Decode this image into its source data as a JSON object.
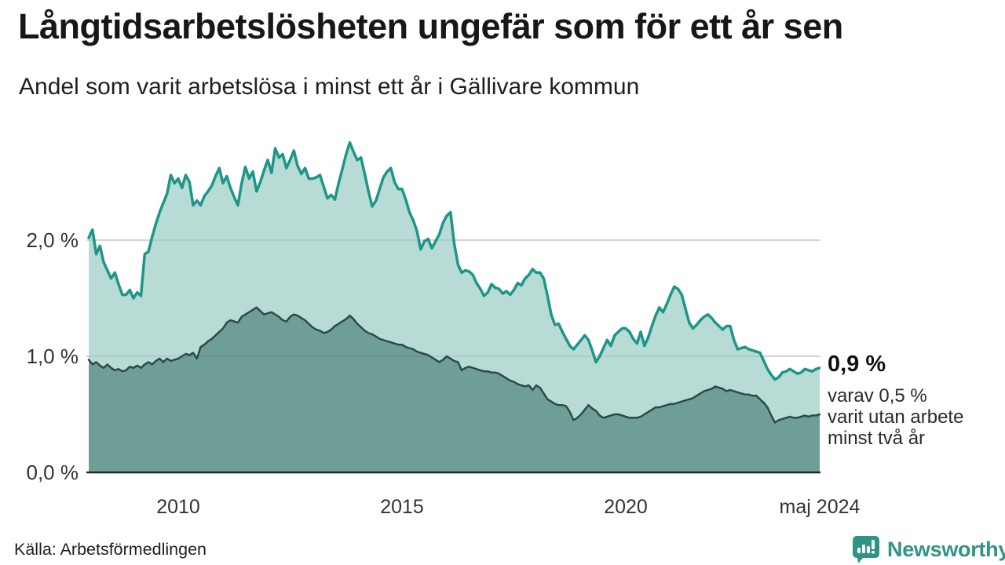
{
  "header": {
    "title": "Långtidsarbetslösheten ungefär som för ett år sen",
    "subtitle": "Andel som varit arbetslösa i minst ett år i Gällivare kommun"
  },
  "annotation": {
    "value": "0,9 %",
    "lines": [
      "varav 0,5 %",
      "varit utan arbete",
      "minst två år"
    ]
  },
  "footer": {
    "source": "Källa: Arbetsförmedlingen",
    "logo_text": "Newsworthy"
  },
  "colors": {
    "title_text": "#171717",
    "axis_text": "#333333",
    "grid": "#d9d9d9",
    "baseline": "#1f2d2a",
    "logo_teal": "#2f9486"
  },
  "chart_data": {
    "type": "area",
    "title": "Långtidsarbetslösheten ungefär som för ett år sen",
    "subtitle": "Andel som varit arbetslösa i minst ett år i Gällivare kommun",
    "x_unit": "month",
    "x_start": "2008-01",
    "x_end": "2024-05",
    "x_ticks": [
      {
        "value": 2010,
        "label": "2010"
      },
      {
        "value": 2015,
        "label": "2015"
      },
      {
        "value": 2020,
        "label": "2020"
      },
      {
        "value": 2024.3333,
        "label": "maj 2024"
      }
    ],
    "y_ticks": [
      {
        "value": 0,
        "label": "0,0 %"
      },
      {
        "value": 1,
        "label": "1,0 %"
      },
      {
        "value": 2,
        "label": "2,0 %"
      }
    ],
    "ylim": [
      0,
      2.9
    ],
    "unit": "%",
    "grid": "horizontal",
    "legend": "none",
    "series": [
      {
        "name": "Andel som varit arbetslösa i minst ett år",
        "line_color": "#1d9689",
        "fill_color": "#b8dbd5",
        "line_width": 3.5,
        "end_value": 0.9,
        "values": [
          2.02,
          2.09,
          1.88,
          1.95,
          1.81,
          1.74,
          1.67,
          1.72,
          1.62,
          1.53,
          1.53,
          1.57,
          1.5,
          1.55,
          1.52,
          1.88,
          1.9,
          2.03,
          2.14,
          2.24,
          2.32,
          2.4,
          2.56,
          2.49,
          2.53,
          2.45,
          2.56,
          2.5,
          2.3,
          2.34,
          2.3,
          2.38,
          2.42,
          2.47,
          2.55,
          2.62,
          2.49,
          2.55,
          2.45,
          2.37,
          2.3,
          2.49,
          2.63,
          2.53,
          2.59,
          2.42,
          2.5,
          2.6,
          2.69,
          2.58,
          2.79,
          2.71,
          2.74,
          2.62,
          2.69,
          2.77,
          2.64,
          2.57,
          2.62,
          2.53,
          2.53,
          2.54,
          2.56,
          2.46,
          2.36,
          2.39,
          2.35,
          2.49,
          2.61,
          2.74,
          2.84,
          2.76,
          2.69,
          2.71,
          2.57,
          2.42,
          2.29,
          2.34,
          2.44,
          2.54,
          2.59,
          2.62,
          2.5,
          2.44,
          2.44,
          2.35,
          2.24,
          2.17,
          2.08,
          1.92,
          1.99,
          2.01,
          1.93,
          1.99,
          2.05,
          2.15,
          2.21,
          2.24,
          1.97,
          1.79,
          1.72,
          1.74,
          1.73,
          1.7,
          1.63,
          1.58,
          1.52,
          1.55,
          1.62,
          1.59,
          1.58,
          1.54,
          1.56,
          1.53,
          1.57,
          1.63,
          1.61,
          1.67,
          1.7,
          1.75,
          1.72,
          1.72,
          1.67,
          1.52,
          1.36,
          1.27,
          1.28,
          1.21,
          1.15,
          1.09,
          1.06,
          1.1,
          1.14,
          1.18,
          1.14,
          1.05,
          0.95,
          1.0,
          1.07,
          1.14,
          1.09,
          1.18,
          1.21,
          1.24,
          1.24,
          1.21,
          1.15,
          1.11,
          1.21,
          1.09,
          1.16,
          1.26,
          1.35,
          1.42,
          1.38,
          1.45,
          1.53,
          1.6,
          1.58,
          1.53,
          1.41,
          1.29,
          1.24,
          1.27,
          1.31,
          1.34,
          1.36,
          1.33,
          1.29,
          1.26,
          1.23,
          1.26,
          1.26,
          1.14,
          1.06,
          1.07,
          1.08,
          1.06,
          1.05,
          1.04,
          1.03,
          0.96,
          0.89,
          0.84,
          0.8,
          0.82,
          0.86,
          0.87,
          0.89,
          0.87,
          0.85,
          0.86,
          0.89,
          0.88,
          0.87,
          0.89,
          0.9
        ]
      },
      {
        "name": "varav varit utan arbete minst två år",
        "line_color": "#2d4b46",
        "fill_color": "#6f9e97",
        "line_width": 2.5,
        "end_value": 0.5,
        "values": [
          0.97,
          0.93,
          0.95,
          0.92,
          0.9,
          0.93,
          0.9,
          0.88,
          0.89,
          0.87,
          0.88,
          0.91,
          0.9,
          0.92,
          0.9,
          0.93,
          0.95,
          0.93,
          0.96,
          0.98,
          0.95,
          0.98,
          0.96,
          0.97,
          0.98,
          1.0,
          1.02,
          1.01,
          1.03,
          0.98,
          1.08,
          1.1,
          1.13,
          1.15,
          1.18,
          1.21,
          1.24,
          1.29,
          1.31,
          1.3,
          1.29,
          1.34,
          1.36,
          1.38,
          1.4,
          1.42,
          1.39,
          1.36,
          1.37,
          1.38,
          1.36,
          1.34,
          1.31,
          1.3,
          1.34,
          1.36,
          1.35,
          1.33,
          1.31,
          1.28,
          1.25,
          1.23,
          1.22,
          1.2,
          1.21,
          1.23,
          1.26,
          1.28,
          1.3,
          1.32,
          1.35,
          1.32,
          1.28,
          1.25,
          1.22,
          1.2,
          1.19,
          1.17,
          1.15,
          1.14,
          1.13,
          1.12,
          1.11,
          1.1,
          1.1,
          1.08,
          1.07,
          1.06,
          1.04,
          1.03,
          1.02,
          1.01,
          0.99,
          0.97,
          0.95,
          0.97,
          1.0,
          0.98,
          0.96,
          0.95,
          0.88,
          0.9,
          0.91,
          0.9,
          0.89,
          0.88,
          0.87,
          0.87,
          0.86,
          0.86,
          0.85,
          0.83,
          0.81,
          0.79,
          0.78,
          0.76,
          0.75,
          0.74,
          0.75,
          0.71,
          0.75,
          0.73,
          0.68,
          0.63,
          0.61,
          0.59,
          0.58,
          0.58,
          0.57,
          0.52,
          0.45,
          0.47,
          0.5,
          0.54,
          0.58,
          0.55,
          0.53,
          0.49,
          0.47,
          0.48,
          0.49,
          0.5,
          0.5,
          0.49,
          0.48,
          0.47,
          0.47,
          0.47,
          0.48,
          0.5,
          0.52,
          0.54,
          0.56,
          0.56,
          0.57,
          0.58,
          0.59,
          0.59,
          0.6,
          0.61,
          0.62,
          0.63,
          0.64,
          0.66,
          0.68,
          0.7,
          0.71,
          0.72,
          0.74,
          0.73,
          0.72,
          0.7,
          0.71,
          0.7,
          0.69,
          0.68,
          0.67,
          0.67,
          0.66,
          0.66,
          0.63,
          0.6,
          0.56,
          0.49,
          0.43,
          0.45,
          0.46,
          0.47,
          0.48,
          0.47,
          0.47,
          0.48,
          0.49,
          0.48,
          0.49,
          0.49,
          0.5
        ]
      }
    ]
  }
}
